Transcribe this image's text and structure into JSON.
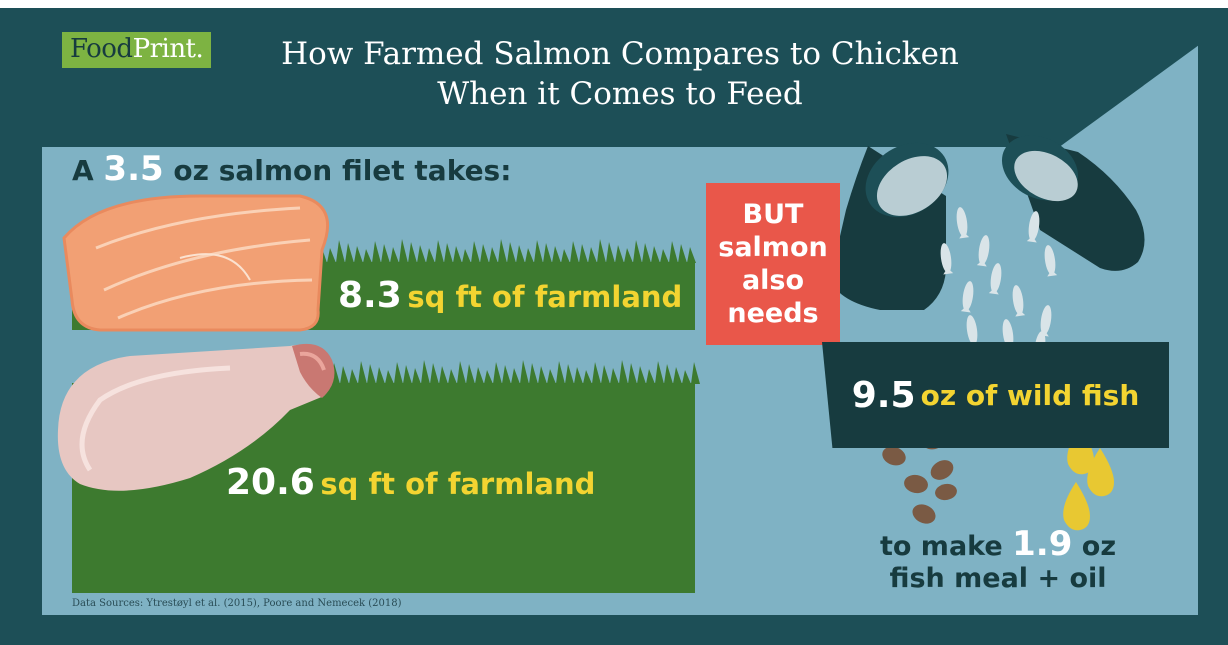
{
  "logo": {
    "food": "Food",
    "print": "Print."
  },
  "title": {
    "line1": "How Farmed Salmon Compares to Chicken",
    "line2": "When it Comes to Feed"
  },
  "subtitle": {
    "prefix": "A",
    "amount": "3.5",
    "suffix": "oz salmon filet takes:"
  },
  "salmon_row": {
    "value": "8.3",
    "unit": "sq ft of farmland"
  },
  "chicken_row": {
    "value": "20.6",
    "unit": "sq ft of farmland"
  },
  "but_box": {
    "line1": "BUT",
    "line2": "salmon",
    "line3": "also",
    "line4": "needs"
  },
  "wild_fish": {
    "value": "9.5",
    "unit": "oz of wild fish"
  },
  "make": {
    "prefix": "to make",
    "value": "1.9",
    "suffix": "oz",
    "line2": "fish meal + oil"
  },
  "sources": "Data Sources:  Ytrestøyl et al. (2015), Poore and Nemecek (2018)",
  "colors": {
    "frame": "#1d4f57",
    "panel": "#7fb2c4",
    "grass": "#3d7a2f",
    "accent_red": "#e9574a",
    "accent_yellow": "#f3d431",
    "dark_navy": "#173b3f"
  },
  "icons": [
    "salmon-filet-icon",
    "chicken-drumstick-icon",
    "bucket-icon",
    "fish-icon",
    "oil-drop-icon",
    "pellet-icon",
    "grass-icon"
  ]
}
